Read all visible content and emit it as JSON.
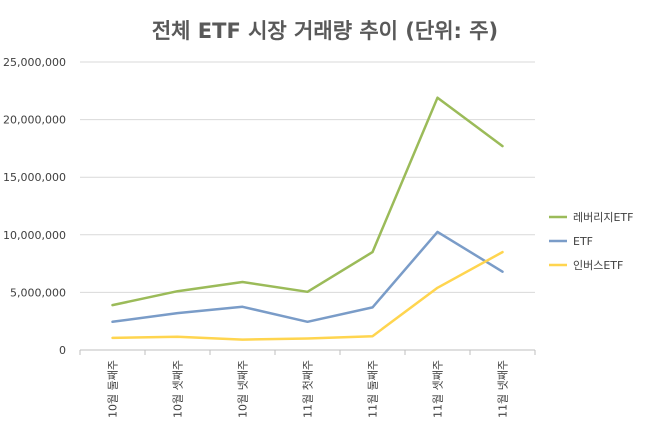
{
  "chart_data": {
    "type": "line",
    "title": "전체 ETF 시장 거래량 추이 (단위: 주)",
    "categories": [
      "10월 둘째주",
      "10월 셋째주",
      "10월 넷째주",
      "11월 첫째주",
      "11월 둘째주",
      "11월 셋째주",
      "11월 넷째주"
    ],
    "series": [
      {
        "name": "레버리지ETF",
        "color": "#9bbb59",
        "values": [
          3900000,
          5100000,
          5900000,
          5050000,
          8500000,
          21900000,
          17700000
        ]
      },
      {
        "name": "ETF",
        "color": "#7a9cc8",
        "values": [
          2450000,
          3200000,
          3750000,
          2450000,
          3700000,
          10250000,
          6800000
        ]
      },
      {
        "name": "인버스ETF",
        "color": "#ffd54f",
        "values": [
          1050000,
          1150000,
          900000,
          1000000,
          1200000,
          5400000,
          8500000
        ]
      }
    ],
    "ylim": [
      0,
      25000000
    ],
    "yticks": [
      0,
      5000000,
      10000000,
      15000000,
      20000000,
      25000000
    ],
    "ytick_labels": [
      "0",
      "5,000,000",
      "10,000,000",
      "15,000,000",
      "20,000,000",
      "25,000,000"
    ],
    "grid": true,
    "legend": "right"
  }
}
